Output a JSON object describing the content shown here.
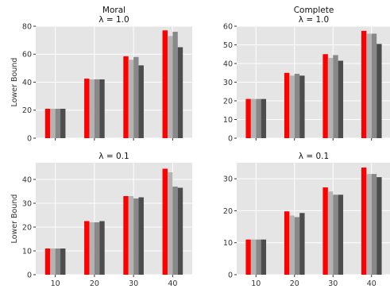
{
  "colors": {
    "background": "#e5e5e5",
    "grid": "#ffffff",
    "series": [
      "#ff0000",
      "#b3b3b3",
      "#888888",
      "#4d4d4d"
    ]
  },
  "chart_data": [
    {
      "type": "bar",
      "title": "Moral",
      "subtitle": "λ = 1.0",
      "ylabel": "Lower Bound",
      "categories": [
        "10",
        "20",
        "30",
        "40"
      ],
      "ylim": [
        0,
        80
      ],
      "yticks": [
        0,
        20,
        40,
        60,
        80
      ],
      "grid": true,
      "series": [
        {
          "values": [
            21,
            42.5,
            58.5,
            77
          ]
        },
        {
          "values": [
            21,
            42,
            56,
            73
          ]
        },
        {
          "values": [
            21,
            42,
            58,
            76
          ]
        },
        {
          "values": [
            21,
            42,
            52,
            65
          ]
        }
      ]
    },
    {
      "type": "bar",
      "title": "Complete",
      "subtitle": "λ = 1.0",
      "ylabel": "",
      "categories": [
        "10",
        "20",
        "30",
        "40"
      ],
      "ylim": [
        0,
        60
      ],
      "yticks": [
        0,
        10,
        20,
        30,
        40,
        50,
        60
      ],
      "grid": true,
      "series": [
        {
          "values": [
            21,
            35,
            45,
            57.5
          ]
        },
        {
          "values": [
            21,
            33.5,
            43,
            56
          ]
        },
        {
          "values": [
            21,
            34.5,
            44.5,
            56
          ]
        },
        {
          "values": [
            21,
            33.5,
            41.5,
            50.5
          ]
        }
      ]
    },
    {
      "type": "bar",
      "title": "",
      "subtitle": "λ = 0.1",
      "ylabel": "Lower Bound",
      "categories": [
        "10",
        "20",
        "30",
        "40"
      ],
      "ylim": [
        0,
        47
      ],
      "yticks": [
        0,
        10,
        20,
        30,
        40
      ],
      "grid": true,
      "series": [
        {
          "values": [
            11,
            22.5,
            33,
            44.5
          ]
        },
        {
          "values": [
            11,
            22,
            33,
            43
          ]
        },
        {
          "values": [
            11,
            22,
            32,
            37
          ]
        },
        {
          "values": [
            11,
            22.5,
            32.5,
            36.5
          ]
        }
      ]
    },
    {
      "type": "bar",
      "title": "",
      "subtitle": "λ = 0.1",
      "ylabel": "",
      "categories": [
        "10",
        "20",
        "30",
        "40"
      ],
      "ylim": [
        0,
        35
      ],
      "yticks": [
        0,
        10,
        20,
        30
      ],
      "grid": true,
      "series": [
        {
          "values": [
            11,
            19.8,
            27.3,
            33.5
          ]
        },
        {
          "values": [
            11,
            18.5,
            26,
            31.5
          ]
        },
        {
          "values": [
            11,
            18,
            25,
            31.5
          ]
        },
        {
          "values": [
            11,
            19.3,
            25,
            30.5
          ]
        }
      ]
    }
  ]
}
